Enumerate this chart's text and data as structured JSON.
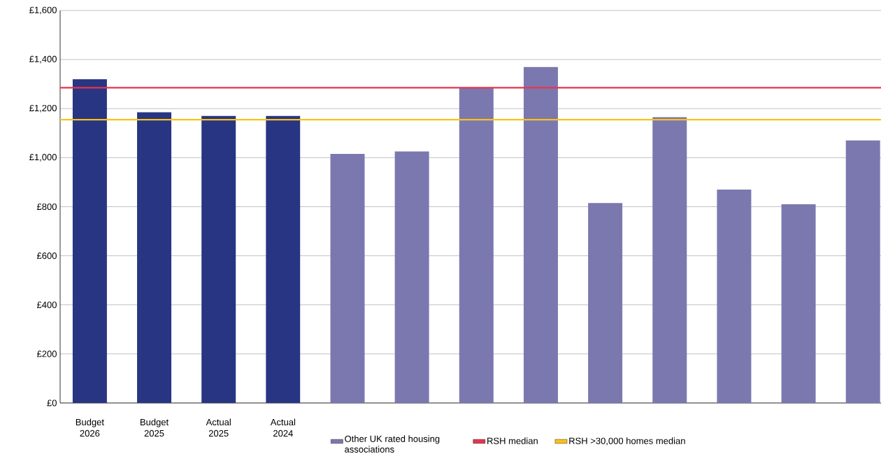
{
  "chart_data": {
    "type": "bar",
    "categories": [
      "Budget 2026",
      "Budget 2025",
      "Actual 2025",
      "Actual 2024",
      null,
      null,
      null,
      null,
      null,
      null,
      null,
      null,
      null
    ],
    "series": [
      {
        "color": "#283583",
        "values": [
          1320,
          1185,
          1170,
          1170,
          null,
          null,
          null,
          null,
          null,
          null,
          null,
          null,
          null
        ]
      },
      {
        "name": "Other UK rated housing associations",
        "color": "#7b78b0",
        "values": [
          null,
          null,
          null,
          null,
          1015,
          1025,
          1285,
          1370,
          815,
          1165,
          870,
          810,
          1070
        ]
      }
    ],
    "ylim": [
      0,
      1600
    ],
    "yticks": [
      {
        "value": 0,
        "label": "£0"
      },
      {
        "value": 200,
        "label": "£200"
      },
      {
        "value": 400,
        "label": "£400"
      },
      {
        "value": 600,
        "label": "£600"
      },
      {
        "value": 800,
        "label": "£800"
      },
      {
        "value": 1000,
        "label": "£1,000"
      },
      {
        "value": 1200,
        "label": "£1,200"
      },
      {
        "value": 1400,
        "label": "£1,400"
      },
      {
        "value": 1600,
        "label": "£1,600"
      }
    ],
    "ref_lines": [
      {
        "axis": "y",
        "value": 1285,
        "label": "RSH median",
        "color": "#e8334f"
      },
      {
        "axis": "y",
        "value": 1155,
        "label": "RSH >30,000 homes median",
        "color": "#fbc213"
      }
    ],
    "grid": "y",
    "legend": "bottom"
  }
}
